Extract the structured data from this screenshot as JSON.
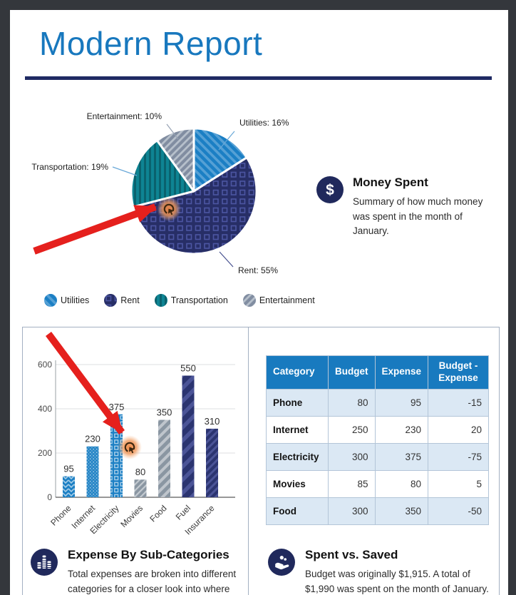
{
  "header": {
    "title": "Modern Report"
  },
  "money_spent": {
    "icon_glyph": "$",
    "heading": "Money Spent",
    "body": "Summary of how much money was spent in the month of January."
  },
  "sections": {
    "expense_by_sub_categories": {
      "heading": "Expense By Sub-Categories",
      "body": "Total expenses are broken into different categories for a closer look into where"
    },
    "spent_vs_saved": {
      "heading": "Spent vs. Saved",
      "body": "Budget was originally $1,915. A total of $1,990 was spent on the month of January."
    }
  },
  "chart_data": [
    {
      "type": "pie",
      "slices": [
        {
          "label": "Utilities",
          "value": 16,
          "color": "#1b7fc4",
          "texture": "diagonal-stripes"
        },
        {
          "label": "Rent",
          "value": 55,
          "color": "#272e66",
          "texture": "square-outlines"
        },
        {
          "label": "Transportation",
          "value": 19,
          "color": "#0e8493",
          "texture": "vertical-stripes"
        },
        {
          "label": "Entertainment",
          "value": 10,
          "color": "#818da1",
          "texture": "diagonal-stripes"
        }
      ],
      "label_format": "name: value%",
      "legend_position": "bottom",
      "start_angle": "top",
      "direction": "clockwise"
    },
    {
      "type": "bar",
      "categories": [
        "Phone",
        "Internet",
        "Electricity",
        "Movies",
        "Food",
        "Fuel",
        "Insurance"
      ],
      "values": [
        95,
        230,
        375,
        80,
        350,
        550,
        310
      ],
      "yticks": [
        0,
        200,
        400,
        600
      ],
      "ylim": [
        0,
        600
      ],
      "grid": true,
      "bar_colors": [
        "#1b7fc4",
        "#1b7fc4",
        "#1b7fc4",
        "#8a96a2",
        "#8a96a2",
        "#2b3470",
        "#2b3470"
      ]
    },
    {
      "type": "table",
      "headers": [
        "Category",
        "Budget",
        "Expense",
        "Budget - Expense"
      ],
      "rows": [
        [
          "Phone",
          80,
          95,
          -15
        ],
        [
          "Internet",
          250,
          230,
          20
        ],
        [
          "Electricity",
          300,
          375,
          -75
        ],
        [
          "Movies",
          85,
          80,
          5
        ],
        [
          "Food",
          300,
          350,
          -50
        ]
      ]
    }
  ],
  "theme": {
    "title_blue": "#1878be",
    "divider_navy": "#1f2a63",
    "icon_navy": "#20295c",
    "table_header_blue": "#187abf",
    "table_alt_row": "#dbe8f4",
    "card_border": "#a3b0c2",
    "tutorial_arrow_red": "#e5201d",
    "click_indicator_orange": "#f08a4b"
  }
}
